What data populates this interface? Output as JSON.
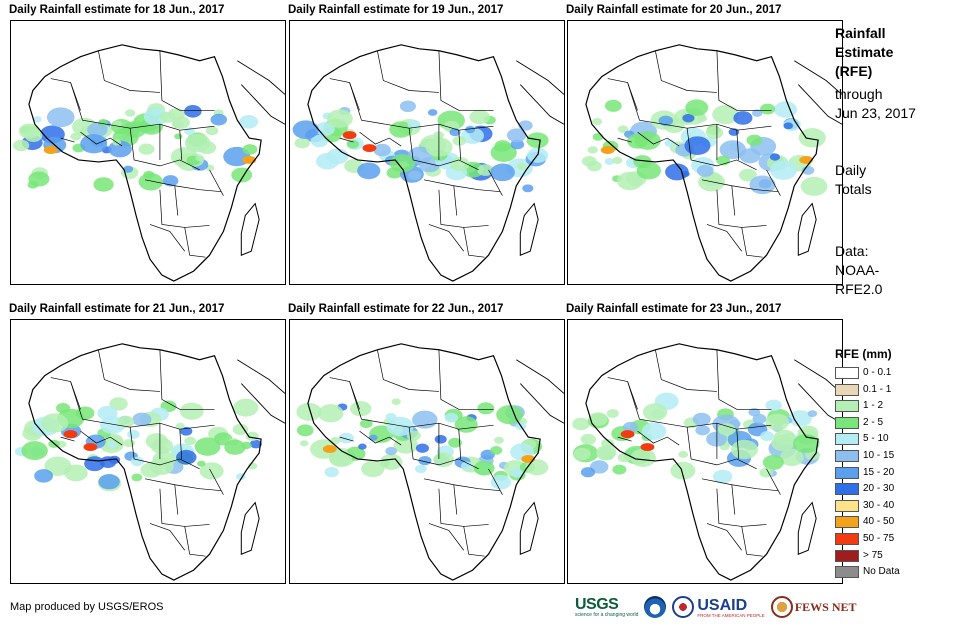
{
  "panels": [
    {
      "title": "Daily Rainfall estimate for 18 Jun., 2017"
    },
    {
      "title": "Daily Rainfall estimate for 19 Jun., 2017"
    },
    {
      "title": "Daily Rainfall estimate for 20 Jun., 2017"
    },
    {
      "title": "Daily Rainfall estimate for 21 Jun., 2017"
    },
    {
      "title": "Daily Rainfall estimate for 22 Jun., 2017"
    },
    {
      "title": "Daily Rainfall estimate for 23 Jun., 2017"
    }
  ],
  "side": {
    "title_line1": "Rainfall",
    "title_line2": "Estimate",
    "title_line3": "(RFE)",
    "through_line1": "through",
    "through_line2": "Jun 23, 2017",
    "totals_line1": "Daily",
    "totals_line2": "Totals",
    "data_line1": "Data:",
    "data_line2": "NOAA-",
    "data_line3": "RFE2.0"
  },
  "legend": {
    "title": "RFE (mm)",
    "items": [
      {
        "label": "0 - 0.1",
        "color": "#ffffff"
      },
      {
        "label": "0.1 - 1",
        "color": "#ead7b8"
      },
      {
        "label": "1 - 2",
        "color": "#b4f0b4"
      },
      {
        "label": "2 - 5",
        "color": "#78e678"
      },
      {
        "label": "5 - 10",
        "color": "#b4ecf4"
      },
      {
        "label": "10 - 15",
        "color": "#8cbff0"
      },
      {
        "label": "15 - 20",
        "color": "#5aa0ee"
      },
      {
        "label": "20 - 30",
        "color": "#2f6fe8"
      },
      {
        "label": "30 - 40",
        "color": "#fce38a"
      },
      {
        "label": "40 - 50",
        "color": "#f5a21b"
      },
      {
        "label": "50 - 75",
        "color": "#f23c0f"
      },
      {
        "label": "> 75",
        "color": "#a01d1d"
      },
      {
        "label": "No Data",
        "color": "#8c8c8c"
      }
    ]
  },
  "credit": "Map produced by USGS/EROS",
  "logos": {
    "usgs": "USGS",
    "usgs_tagline": "science for a changing world",
    "usaid": "USAID",
    "usaid_tagline": "FROM THE AMERICAN PEOPLE",
    "fews": "FEWS NET"
  }
}
